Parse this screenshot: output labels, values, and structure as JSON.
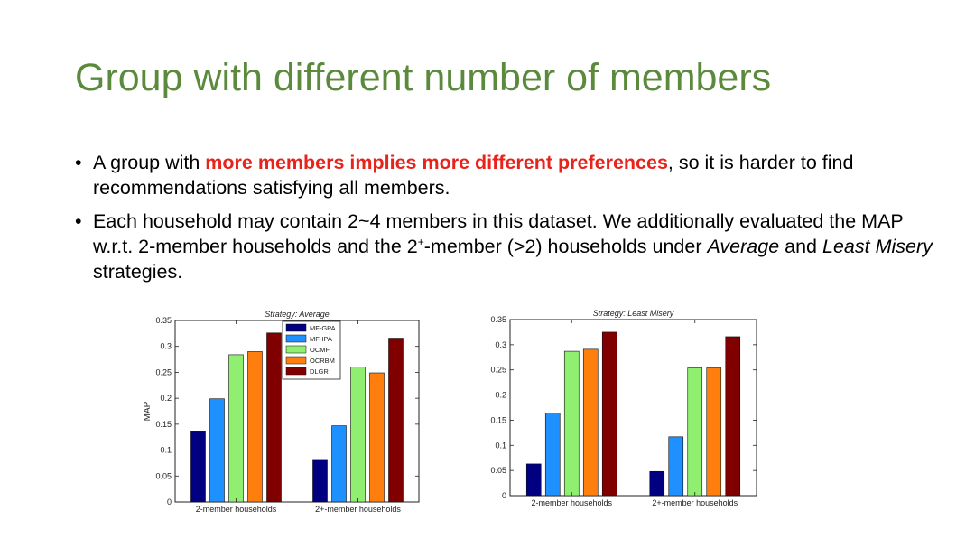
{
  "slide": {
    "title": "Group with different number of members",
    "bullet1": {
      "prefix": "A group with ",
      "highlight": "more members implies more different preferences",
      "suffix": ", so it is harder to find recommendations satisfying all members."
    },
    "bullet2": {
      "part1": "Each household may contain 2~4 members in this dataset. We additionally evaluated the MAP w.r.t. 2-member households and the 2",
      "sup": "+",
      "part2": "-member (>2) households under ",
      "avg": "Average",
      "and": " and ",
      "lm": "Least Misery",
      "end": " strategies."
    },
    "bullet_glyph": "•"
  },
  "colors": {
    "title": "#5b8a3c",
    "highlight": "#e8231c"
  },
  "chart_data": [
    {
      "type": "bar",
      "title": "Strategy: Average",
      "xlabel": "",
      "ylabel": "MAP",
      "ylim": [
        0,
        0.35
      ],
      "yticks": [
        "0",
        "0.05",
        "0.1",
        "0.15",
        "0.2",
        "0.25",
        "0.3",
        "0.35"
      ],
      "categories": [
        "2-member households",
        "2+-member households"
      ],
      "legend": "top-center",
      "series": [
        {
          "name": "MF-GPA",
          "color": "#000080",
          "values": [
            0.137,
            0.082
          ]
        },
        {
          "name": "MF-IPA",
          "color": "#1e90ff",
          "values": [
            0.199,
            0.147
          ]
        },
        {
          "name": "OCMF",
          "color": "#90ee70",
          "values": [
            0.284,
            0.26
          ]
        },
        {
          "name": "OCRBM",
          "color": "#ff7f0e",
          "values": [
            0.29,
            0.249
          ]
        },
        {
          "name": "DLGR",
          "color": "#800000",
          "values": [
            0.326,
            0.316
          ]
        }
      ]
    },
    {
      "type": "bar",
      "title": "Strategy: Least Misery",
      "xlabel": "",
      "ylabel": "",
      "ylim": [
        0,
        0.35
      ],
      "yticks": [
        "0",
        "0.05",
        "0.1",
        "0.15",
        "0.2",
        "0.25",
        "0.3",
        "0.35"
      ],
      "categories": [
        "2-member households",
        "2+-member households"
      ],
      "series": [
        {
          "color": "#000080",
          "values": [
            0.063,
            0.048
          ]
        },
        {
          "color": "#1e90ff",
          "values": [
            0.164,
            0.117
          ]
        },
        {
          "color": "#90ee70",
          "values": [
            0.287,
            0.254
          ]
        },
        {
          "color": "#ff7f0e",
          "values": [
            0.291,
            0.254
          ]
        },
        {
          "color": "#800000",
          "values": [
            0.325,
            0.316
          ]
        }
      ]
    }
  ]
}
